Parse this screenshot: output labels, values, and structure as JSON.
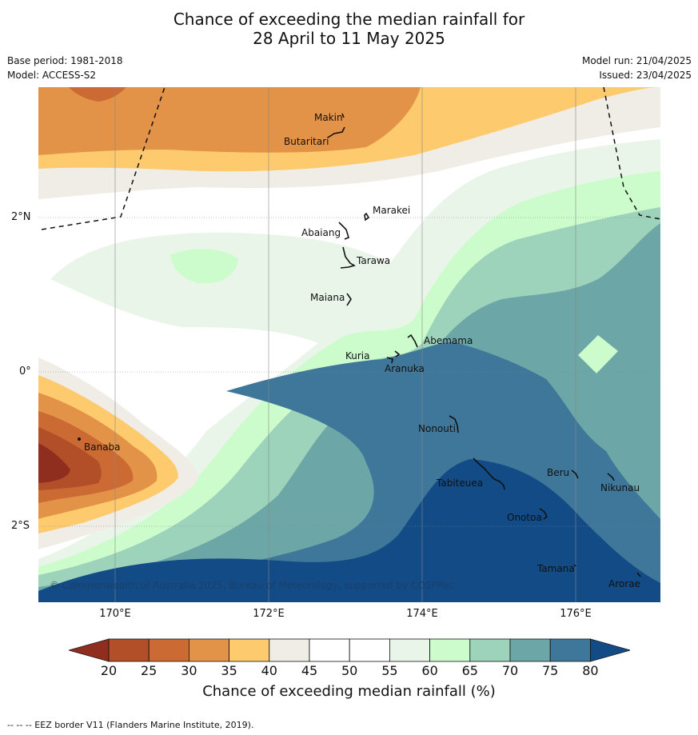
{
  "title_line1": "Chance of exceeding the median rainfall for",
  "title_line2": "28 April to 11 May 2025",
  "base_period": "Base period: 1981-2018",
  "model": "Model: ACCESS-S2",
  "model_run": "Model run: 21/04/2025",
  "issued": "Issued: 23/04/2025",
  "copyright": "© Commonwealth of Australia 2025, Bureau of Meteorology, supported by COSPPac",
  "lon_labels": [
    "170°E",
    "172°E",
    "174°E",
    "176°E"
  ],
  "lat_labels": [
    "2°N",
    "0°",
    "2°S"
  ],
  "places": {
    "makin": "Makin",
    "butaritari": "Butaritari",
    "marakei": "Marakei",
    "abaiang": "Abaiang",
    "tarawa": "Tarawa",
    "maiana": "Maiana",
    "abemama": "Abemama",
    "kuria": "Kuria",
    "aranuka": "Aranuka",
    "nonouti": "Nonouti",
    "banaba": "Banaba",
    "beru": "Beru",
    "tabiteuea": "Tabiteuea",
    "nikunau": "Nikunau",
    "onotoa": "Onotoa",
    "tamana": "Tamana",
    "arorae": "Arorae"
  },
  "colorbar": {
    "ticks": [
      "20",
      "25",
      "30",
      "35",
      "40",
      "45",
      "50",
      "55",
      "60",
      "65",
      "70",
      "75",
      "80"
    ],
    "title": "Chance of exceeding median rainfall (%)",
    "colors": [
      "#8f2e1e",
      "#b34f28",
      "#cc6a34",
      "#e29348",
      "#fdca6d",
      "#f0ece6",
      "#ffffff",
      "#ffffff",
      "#eaf5ea",
      "#ccfccc",
      "#9dd2bb",
      "#6da6a7",
      "#3e7799",
      "#124b85"
    ]
  },
  "footer": "-- -- -- EEZ border V11 (Flanders Marine Institute, 2019)."
}
